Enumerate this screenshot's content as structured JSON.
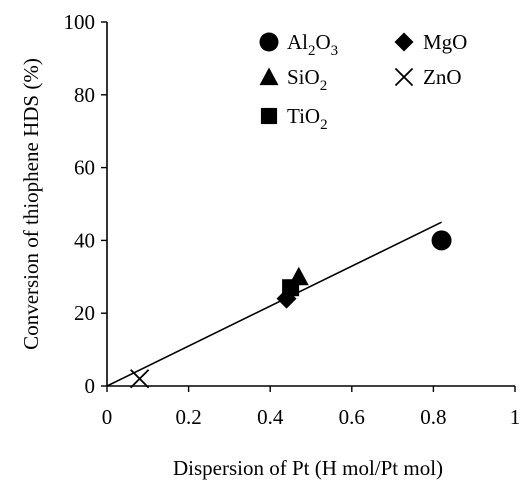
{
  "chart_data": {
    "type": "scatter",
    "title": "",
    "xlabel": "Dispersion of Pt (H mol/Pt mol)",
    "ylabel": "Conversion of thiophene HDS (%)",
    "xlim": [
      0,
      1
    ],
    "ylim": [
      0,
      100
    ],
    "xticks": [
      0,
      0.2,
      0.4,
      0.6,
      0.8,
      1
    ],
    "xtick_labels": [
      "0",
      "0.2",
      "0.4",
      "0.6",
      "0.8",
      "1"
    ],
    "yticks": [
      0,
      20,
      40,
      60,
      80,
      100
    ],
    "ytick_labels": [
      "0",
      "20",
      "40",
      "60",
      "80",
      "100"
    ],
    "grid": false,
    "legend_position": "top-right",
    "series": [
      {
        "name": "Al2O3",
        "marker": "circle",
        "points": [
          {
            "x": 0.82,
            "y": 40
          }
        ]
      },
      {
        "name": "MgO",
        "marker": "diamond",
        "points": [
          {
            "x": 0.44,
            "y": 24
          }
        ]
      },
      {
        "name": "SiO2",
        "marker": "triangle",
        "points": [
          {
            "x": 0.47,
            "y": 30
          }
        ]
      },
      {
        "name": "ZnO",
        "marker": "x",
        "points": [
          {
            "x": 0.08,
            "y": 2
          }
        ]
      },
      {
        "name": "TiO2",
        "marker": "square",
        "points": [
          {
            "x": 0.45,
            "y": 27
          }
        ]
      }
    ],
    "trendline": {
      "type": "linear",
      "from": {
        "x": 0,
        "y": 0
      },
      "to": {
        "x": 0.82,
        "y": 45
      }
    },
    "legend": [
      {
        "base": "Al",
        "sub1": "2",
        "mid": "O",
        "sub2": "3",
        "series": "Al2O3",
        "marker": "circle"
      },
      {
        "base": "MgO",
        "sub1": "",
        "mid": "",
        "sub2": "",
        "series": "MgO",
        "marker": "diamond"
      },
      {
        "base": "SiO",
        "sub1": "2",
        "mid": "",
        "sub2": "",
        "series": "SiO2",
        "marker": "triangle"
      },
      {
        "base": "ZnO",
        "sub1": "",
        "mid": "",
        "sub2": "",
        "series": "ZnO",
        "marker": "x"
      },
      {
        "base": "TiO",
        "sub1": "2",
        "mid": "",
        "sub2": "",
        "series": "TiO2",
        "marker": "square"
      }
    ],
    "colors": {
      "marker": "#000000",
      "axis": "#000000",
      "line": "#000000"
    }
  }
}
